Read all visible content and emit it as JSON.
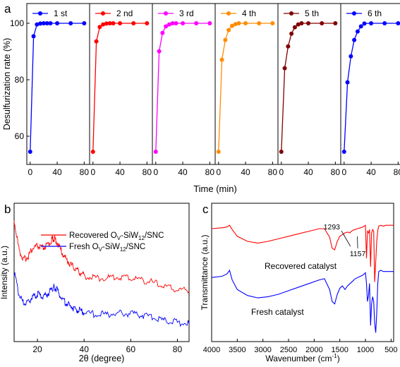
{
  "panel_labels": {
    "a": "a",
    "b": "b",
    "c": "c"
  },
  "chart_data": [
    {
      "panel": "a",
      "type": "line",
      "ylabel": "Desulfurization rate (%)",
      "xlabel": "Time (min)",
      "ylim": [
        50,
        107
      ],
      "xlim": [
        -5,
        88
      ],
      "y_ticks": [
        60,
        80,
        100
      ],
      "x_ticks": [
        0,
        40,
        80
      ],
      "x_tick_labels": [
        "0",
        "40",
        "80"
      ],
      "x": [
        0,
        5,
        10,
        15,
        20,
        25,
        30,
        40,
        60,
        80
      ],
      "series": [
        {
          "name": "1 st",
          "color": "#0000ff",
          "values": [
            54.5,
            95.4,
            99.6,
            99.9,
            100,
            100,
            100,
            100,
            100,
            100
          ]
        },
        {
          "name": "2 nd",
          "color": "#ff0000",
          "values": [
            54.5,
            93.6,
            98.7,
            99.6,
            99.9,
            100,
            100,
            100,
            100,
            100
          ]
        },
        {
          "name": "3 rd",
          "color": "#ff00ff",
          "values": [
            54.5,
            90.1,
            96.6,
            98.9,
            99.6,
            100,
            100,
            100,
            100,
            100
          ]
        },
        {
          "name": "4 th",
          "color": "#ff8c00",
          "values": [
            54.5,
            87.1,
            94.1,
            97.6,
            99.1,
            99.7,
            100,
            100,
            100,
            100
          ]
        },
        {
          "name": "5 th",
          "color": "#800000",
          "values": [
            54.5,
            84.1,
            91.8,
            96.3,
            98.6,
            99.6,
            100,
            100,
            100,
            100
          ]
        },
        {
          "name": "6 th",
          "color": "#0000ff",
          "values": [
            54.5,
            79.1,
            88.3,
            94.1,
            97.1,
            98.9,
            99.9,
            100,
            100,
            100
          ]
        }
      ]
    },
    {
      "panel": "b",
      "type": "line",
      "xlabel": "2θ (degree)",
      "ylabel": "Intensity (a.u.)",
      "xlim": [
        10,
        85
      ],
      "x_ticks": [
        20,
        40,
        60,
        80
      ],
      "legend_position": "top-right",
      "series": [
        {
          "name": "Recovered",
          "legend_text": [
            "Recovered O",
            "V",
            "-SiW",
            "12",
            "/SNC"
          ],
          "color": "#ff0000",
          "x": [
            10,
            12,
            14,
            16,
            18,
            20,
            22,
            24,
            26,
            27,
            28,
            30,
            32,
            34,
            36,
            38,
            40,
            45,
            50,
            55,
            60,
            65,
            70,
            75,
            80,
            85
          ],
          "values": [
            1.0,
            0.72,
            0.6,
            0.64,
            0.72,
            0.74,
            0.72,
            0.74,
            0.8,
            0.82,
            0.8,
            0.7,
            0.62,
            0.56,
            0.52,
            0.48,
            0.44,
            0.42,
            0.42,
            0.43,
            0.42,
            0.4,
            0.37,
            0.33,
            0.3,
            0.3
          ]
        },
        {
          "name": "Fresh",
          "legend_text": [
            "Fresh O",
            "V",
            "-SiW",
            "12",
            "/SNC"
          ],
          "color": "#0000ff",
          "x": [
            10,
            12,
            14,
            16,
            18,
            20,
            22,
            24,
            26,
            27,
            28,
            30,
            32,
            34,
            36,
            38,
            40,
            45,
            50,
            55,
            60,
            65,
            70,
            75,
            80,
            85
          ],
          "values": [
            0.6,
            0.36,
            0.26,
            0.28,
            0.33,
            0.36,
            0.34,
            0.35,
            0.41,
            0.44,
            0.42,
            0.33,
            0.27,
            0.23,
            0.2,
            0.18,
            0.16,
            0.14,
            0.14,
            0.15,
            0.15,
            0.13,
            0.1,
            0.07,
            0.05,
            0.05
          ]
        }
      ]
    },
    {
      "panel": "c",
      "type": "line",
      "xlabel": "Wavenumber (cm",
      "xlabel_sup": "-1",
      "xlabel_tail": ")",
      "ylabel": "Transmittance (a.u.)",
      "xlim": [
        4000,
        450
      ],
      "x_ticks": [
        4000,
        3500,
        3000,
        2500,
        2000,
        1500,
        1000,
        500
      ],
      "series": [
        {
          "name": "Recovered catalyst",
          "color": "#ff0000",
          "x": [
            4000,
            3800,
            3700,
            3650,
            3600,
            3500,
            3300,
            3100,
            2900,
            2700,
            2500,
            2300,
            2100,
            1900,
            1800,
            1700,
            1650,
            1600,
            1550,
            1500,
            1450,
            1400,
            1350,
            1300,
            1293,
            1250,
            1200,
            1157,
            1100,
            1050,
            1000,
            980,
            960,
            940,
            920,
            900,
            880,
            860,
            840,
            820,
            800,
            780,
            760,
            740,
            700,
            650,
            600,
            500,
            450
          ],
          "values": [
            0.95,
            0.96,
            0.97,
            0.99,
            0.94,
            0.86,
            0.8,
            0.78,
            0.8,
            0.83,
            0.86,
            0.89,
            0.92,
            0.95,
            0.95,
            0.85,
            0.72,
            0.7,
            0.8,
            0.86,
            0.88,
            0.9,
            0.91,
            0.9,
            0.91,
            0.93,
            0.94,
            0.95,
            0.96,
            0.97,
            0.99,
            0.6,
            0.92,
            0.9,
            0.94,
            0.5,
            0.9,
            0.94,
            0.92,
            0.32,
            0.56,
            0.8,
            0.93,
            0.98,
            0.99,
            0.98,
            0.99,
            0.99,
            0.99
          ]
        },
        {
          "name": "Fresh catalyst",
          "color": "#0000ff",
          "x": [
            4000,
            3800,
            3700,
            3650,
            3600,
            3500,
            3300,
            3100,
            2900,
            2700,
            2500,
            2300,
            2100,
            1900,
            1800,
            1700,
            1650,
            1600,
            1550,
            1500,
            1450,
            1400,
            1350,
            1300,
            1250,
            1200,
            1150,
            1100,
            1050,
            1000,
            980,
            960,
            940,
            920,
            900,
            880,
            860,
            840,
            820,
            800,
            780,
            760,
            740,
            700,
            650,
            600,
            500,
            450
          ],
          "values": [
            0.5,
            0.51,
            0.53,
            0.56,
            0.48,
            0.4,
            0.35,
            0.33,
            0.34,
            0.36,
            0.39,
            0.42,
            0.45,
            0.48,
            0.49,
            0.4,
            0.3,
            0.28,
            0.36,
            0.41,
            0.43,
            0.4,
            0.43,
            0.45,
            0.47,
            0.49,
            0.5,
            0.51,
            0.52,
            0.54,
            0.45,
            0.3,
            0.35,
            0.45,
            0.1,
            0.28,
            0.34,
            0.3,
            0.12,
            0.04,
            0.2,
            0.45,
            0.55,
            0.56,
            0.55,
            0.55,
            0.55,
            0.55
          ]
        }
      ],
      "annotations": [
        {
          "text": "1293",
          "at": [
            1293,
            0.91
          ]
        },
        {
          "text": "1157",
          "at": [
            1157,
            0.95
          ]
        },
        {
          "text": "Recovered catalyst",
          "at": [
            3100,
            0.78
          ]
        },
        {
          "text": "Fresh catalyst",
          "at": [
            3100,
            0.33
          ]
        }
      ]
    }
  ]
}
